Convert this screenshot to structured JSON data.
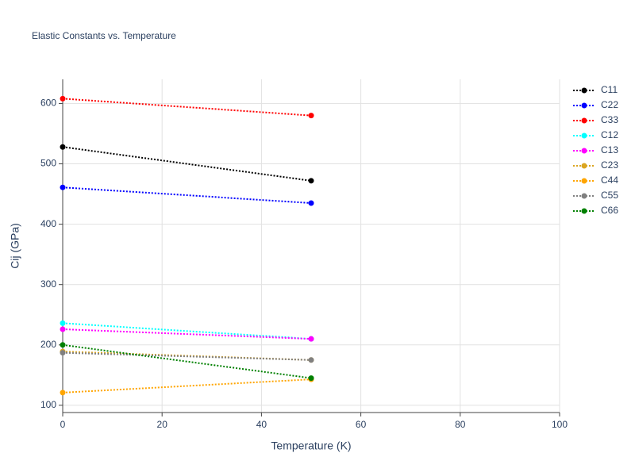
{
  "chart_data": {
    "type": "line",
    "title": "Elastic Constants vs. Temperature",
    "x_label": "Temperature (K)",
    "y_label": "Cij (GPa)",
    "x": [
      0,
      50
    ],
    "series": [
      {
        "name": "C11",
        "color": "#000000",
        "values": [
          528,
          472
        ]
      },
      {
        "name": "C22",
        "color": "#0000ff",
        "values": [
          461,
          435
        ]
      },
      {
        "name": "C33",
        "color": "#ff0000",
        "values": [
          608,
          580
        ]
      },
      {
        "name": "C12",
        "color": "#00ffff",
        "values": [
          236,
          210
        ]
      },
      {
        "name": "C13",
        "color": "#ff00ff",
        "values": [
          226,
          210
        ]
      },
      {
        "name": "C23",
        "color": "#daa520",
        "values": [
          189,
          175
        ]
      },
      {
        "name": "C44",
        "color": "#ffa500",
        "values": [
          121,
          143
        ]
      },
      {
        "name": "C55",
        "color": "#808080",
        "values": [
          187,
          175
        ]
      },
      {
        "name": "C66",
        "color": "#008000",
        "values": [
          200,
          145
        ]
      }
    ],
    "xlim": [
      0,
      100
    ],
    "xticks": [
      0,
      20,
      40,
      60,
      80,
      100
    ],
    "ylim": [
      88,
      640
    ],
    "yticks": [
      100,
      200,
      300,
      400,
      500,
      600
    ],
    "grid": true,
    "legend": "right"
  }
}
